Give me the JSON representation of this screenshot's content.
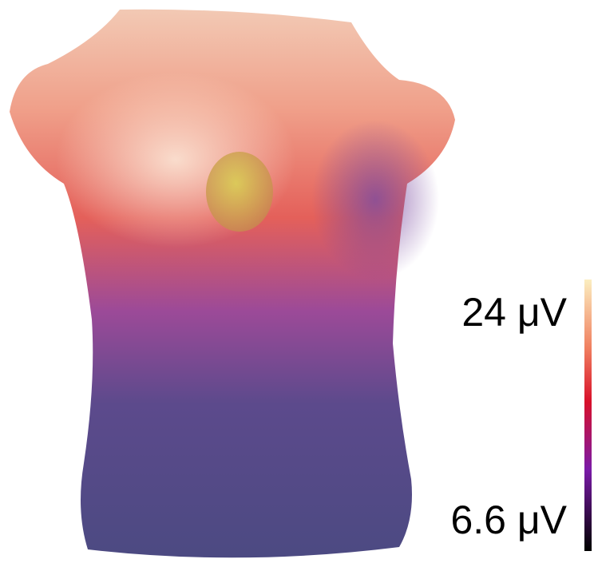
{
  "colorbar": {
    "max_label": "24 μV",
    "min_label": "6.6 μV"
  }
}
